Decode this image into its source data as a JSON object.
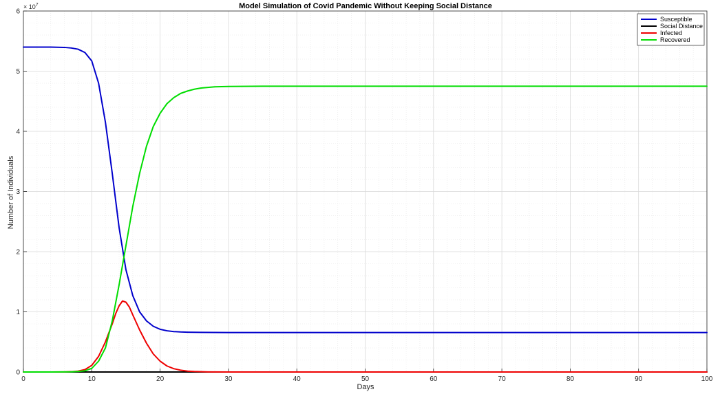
{
  "chart_data": {
    "type": "line",
    "title": "Model Simulation of Covid Pandemic Without Keeping Social Distance",
    "xlabel": "Days",
    "ylabel": "Number of Individuals",
    "y_exponent_label": "× 10",
    "y_exponent_power": "7",
    "y_scale": 10000000,
    "xlim": [
      0,
      100
    ],
    "ylim": [
      0,
      60000000
    ],
    "xticks": [
      0,
      10,
      20,
      30,
      40,
      50,
      60,
      70,
      80,
      90,
      100
    ],
    "ytick_labels": [
      "0",
      "1",
      "2",
      "3",
      "4",
      "5",
      "6"
    ],
    "grid": true,
    "minor_grid": true,
    "legend_position": "top-right",
    "series": [
      {
        "name": "Susceptible",
        "color": "#0000cc",
        "x": [
          0,
          2,
          4,
          6,
          7,
          8,
          9,
          10,
          11,
          12,
          13,
          14,
          15,
          16,
          17,
          18,
          19,
          20,
          21,
          22,
          23,
          24,
          26,
          28,
          30,
          40,
          50,
          60,
          70,
          80,
          90,
          100
        ],
        "y": [
          54000000,
          54000000,
          54000000,
          53950000,
          53850000,
          53650000,
          53100000,
          51700000,
          48000000,
          41500000,
          33000000,
          24000000,
          17000000,
          12700000,
          10000000,
          8500000,
          7600000,
          7100000,
          6850000,
          6720000,
          6650000,
          6620000,
          6580000,
          6570000,
          6560000,
          6560000,
          6560000,
          6560000,
          6560000,
          6560000,
          6560000,
          6560000
        ]
      },
      {
        "name": "Social Distance",
        "color": "#000000",
        "x": [
          0,
          100
        ],
        "y": [
          0,
          0
        ]
      },
      {
        "name": "Infected",
        "color": "#ee0000",
        "x": [
          0,
          4,
          6,
          7,
          8,
          9,
          10,
          11,
          12,
          13,
          13.5,
          14,
          14.5,
          15,
          15.5,
          16,
          17,
          18,
          19,
          20,
          21,
          22,
          23,
          24,
          25,
          27,
          30,
          40,
          100
        ],
        "y": [
          0,
          0,
          20000,
          50000,
          150000,
          400000,
          1100000,
          2600000,
          5000000,
          8000000,
          9700000,
          11000000,
          11800000,
          11600000,
          10800000,
          9500000,
          7000000,
          4800000,
          3000000,
          1800000,
          1000000,
          550000,
          300000,
          150000,
          80000,
          20000,
          0,
          0,
          0
        ]
      },
      {
        "name": "Recovered",
        "color": "#00dd00",
        "x": [
          0,
          4,
          6,
          7,
          8,
          9,
          10,
          11,
          12,
          13,
          14,
          15,
          16,
          17,
          18,
          19,
          20,
          21,
          22,
          23,
          24,
          25,
          26,
          27,
          28,
          30,
          35,
          40,
          100
        ],
        "y": [
          0,
          0,
          10000,
          30000,
          80000,
          200000,
          600000,
          1800000,
          4000000,
          8500000,
          14500000,
          21000000,
          27500000,
          33000000,
          37500000,
          40800000,
          43000000,
          44600000,
          45600000,
          46300000,
          46700000,
          47000000,
          47200000,
          47300000,
          47400000,
          47450000,
          47500000,
          47500000,
          47500000
        ]
      }
    ]
  }
}
